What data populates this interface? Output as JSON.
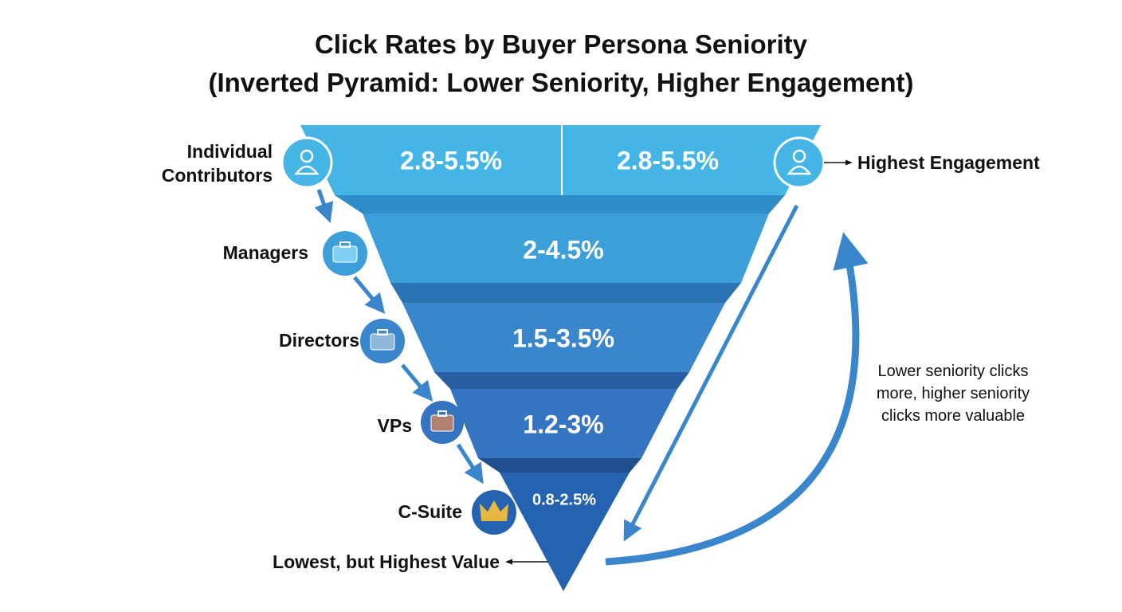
{
  "title": "Click Rates by Buyer Persona Seniority",
  "subtitle": "(Inverted Pyramid: Lower Seniority, Higher Engagement)",
  "tiers": [
    {
      "label": "Individual Contributors",
      "rates": [
        "2.8-5.5%",
        "2.8-5.5%"
      ]
    },
    {
      "label": "Managers",
      "rates": [
        "2-4.5%"
      ]
    },
    {
      "label": "Directors",
      "rates": [
        "1.5-3.5%"
      ]
    },
    {
      "label": "VPs",
      "rates": [
        "1.2-3%"
      ]
    },
    {
      "label": "C-Suite",
      "rates": [
        "0.8-2.5%"
      ]
    }
  ],
  "annotations": {
    "top": "Highest Engagement",
    "bottom": "Lowest, but Highest Value",
    "side": "Lower seniority clicks more, higher seniority clicks more valuable"
  }
}
